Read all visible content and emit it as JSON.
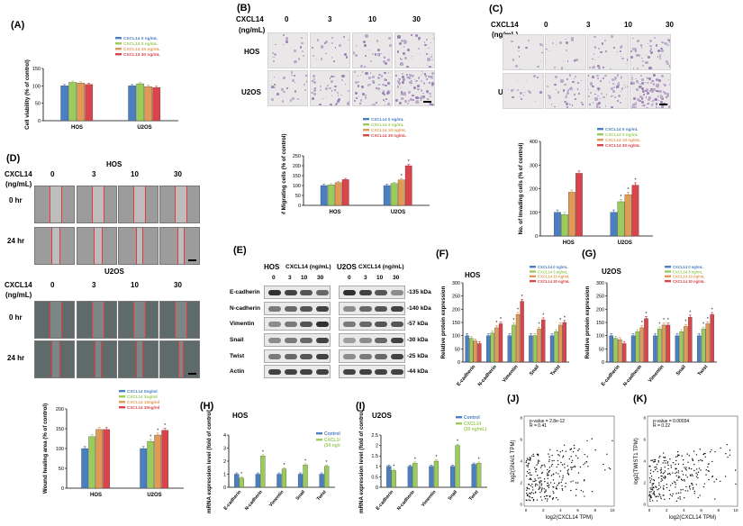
{
  "panels": {
    "A": "(A)",
    "B": "(B)",
    "C": "(C)",
    "D": "(D)",
    "E": "(E)",
    "F": "(F)",
    "G": "(G)",
    "H": "(H)",
    "I": "(I)",
    "J": "(J)",
    "K": "(K)"
  },
  "colors": {
    "c0": "#4a7fc1",
    "c3": "#9bcb5a",
    "c10": "#e09a56",
    "c30": "#d9454a",
    "control": "#4a7fc1",
    "cxcl": "#9bcb5a"
  },
  "legend4": [
    "CXCL14 0 ng/mL",
    "CXCL14 3 ng/mL",
    "CXCL14 10 ng/mL",
    "CXCL14 30 ng/mL"
  ],
  "legend4d": [
    "CXCL14 0ng/ml",
    "CXCL14 3ng/ml",
    "CXCL14 10ng/ml",
    "CXCL14 30ng/ml"
  ],
  "cxcl_header": "CXCL14",
  "cxcl_unit": "(ng/mL)",
  "doses": [
    "0",
    "3",
    "10",
    "30"
  ],
  "cells": {
    "hos": "HOS",
    "u2os": "U2OS"
  },
  "hours": [
    "0 hr",
    "24 hr"
  ],
  "blot": {
    "hos_header": "HOS",
    "u2os_header": "U2OS",
    "dose_header": "CXCL14 (ng/mL)",
    "rows": [
      {
        "name": "E-cadherin",
        "kda": "-135 kDa"
      },
      {
        "name": "N-cadherin",
        "kda": "-140 kDa"
      },
      {
        "name": "Vimentin",
        "kda": "-57 kDa"
      },
      {
        "name": "Snail",
        "kda": "-30 kDa"
      },
      {
        "name": "Twist",
        "kda": "-25 kDa"
      },
      {
        "name": "Actin",
        "kda": "-44 kDa"
      }
    ]
  },
  "hm_legend": [
    "Control",
    "CXCL14",
    "(30 ng/mL)"
  ],
  "corr": {
    "J": {
      "p": "p-value = 2.8e-12",
      "r": "R = 0.41",
      "ylabel": "log2(SNAI1 TPM)",
      "xlabel": "log2(CXCL14 TPM)"
    },
    "K": {
      "p": "p-value = 0.00034",
      "r": "R = 0.22",
      "ylabel": "log2(TWIST1 TPM)",
      "xlabel": "log2(CXCL14 TPM)"
    }
  },
  "chart_data": [
    {
      "id": "A",
      "type": "bar",
      "ylabel": "Cell viability (% of control)",
      "categories": [
        "HOS",
        "U2OS"
      ],
      "ylim": [
        0,
        150
      ],
      "yticks": [
        0,
        50,
        100,
        150
      ],
      "series": [
        {
          "name": "CXCL14 0 ng/mL",
          "values": [
            100,
            100
          ]
        },
        {
          "name": "CXCL14 3 ng/mL",
          "values": [
            110,
            106
          ]
        },
        {
          "name": "CXCL14 10 ng/mL",
          "values": [
            108,
            98
          ]
        },
        {
          "name": "CXCL14 30 ng/mL",
          "values": [
            104,
            95
          ]
        }
      ]
    },
    {
      "id": "B",
      "type": "bar",
      "ylabel": "No. of Migrating cells (% of control)",
      "categories": [
        "HOS",
        "U2OS"
      ],
      "ylim": [
        0,
        250
      ],
      "yticks": [
        0,
        50,
        100,
        150,
        200,
        250
      ],
      "series": [
        {
          "name": "CXCL14 0 ng/mL",
          "values": [
            100,
            100
          ]
        },
        {
          "name": "CXCL14 3 ng/mL",
          "values": [
            103,
            110
          ]
        },
        {
          "name": "CXCL14 10 ng/mL",
          "values": [
            115,
            128
          ]
        },
        {
          "name": "CXCL14 30 ng/mL",
          "values": [
            130,
            200
          ]
        }
      ]
    },
    {
      "id": "C",
      "type": "bar",
      "ylabel": "No. of Invading cells (% of control)",
      "categories": [
        "HOS",
        "U2OS"
      ],
      "ylim": [
        0,
        400
      ],
      "yticks": [
        0,
        100,
        200,
        300,
        400
      ],
      "series": [
        {
          "name": "CXCL14 0 ng/mL",
          "values": [
            100,
            100
          ]
        },
        {
          "name": "CXCL14 3 ng/mL",
          "values": [
            90,
            145
          ]
        },
        {
          "name": "CXCL14 10 ng/mL",
          "values": [
            185,
            175
          ]
        },
        {
          "name": "CXCL14 30 ng/mL",
          "values": [
            265,
            215
          ]
        }
      ]
    },
    {
      "id": "D",
      "type": "bar",
      "ylabel": "Wound healing area (% of control)",
      "categories": [
        "HOS",
        "U2OS"
      ],
      "ylim": [
        0,
        200
      ],
      "yticks": [
        0,
        50,
        100,
        150,
        200
      ],
      "series": [
        {
          "name": "CXCL14 0ng/ml",
          "values": [
            100,
            100
          ]
        },
        {
          "name": "CXCL14 3ng/ml",
          "values": [
            130,
            118
          ]
        },
        {
          "name": "CXCL14 10ng/ml",
          "values": [
            148,
            134
          ]
        },
        {
          "name": "CXCL14 30ng/ml",
          "values": [
            148,
            146
          ]
        }
      ]
    },
    {
      "id": "F",
      "type": "bar",
      "title": "HOS",
      "ylabel": "Relative protein expression",
      "categories": [
        "E-cadherin",
        "N-cadherin",
        "Vimentin",
        "Snail",
        "Twist"
      ],
      "ylim": [
        0,
        300
      ],
      "yticks": [
        0,
        50,
        100,
        150,
        200,
        250,
        300
      ],
      "series": [
        {
          "name": "CXCL14 0 ng/mL",
          "values": [
            100,
            100,
            100,
            100,
            100
          ]
        },
        {
          "name": "CXCL14 3 ng/mL",
          "values": [
            90,
            110,
            140,
            100,
            115
          ]
        },
        {
          "name": "CXCL14 10 ng/mL",
          "values": [
            80,
            130,
            180,
            125,
            140
          ]
        },
        {
          "name": "CXCL14 30 ng/mL",
          "values": [
            70,
            145,
            230,
            160,
            150
          ]
        }
      ]
    },
    {
      "id": "G",
      "type": "bar",
      "title": "U2OS",
      "ylabel": "Relative protein expression",
      "categories": [
        "E-cadherin",
        "N-cadherin",
        "Vimentin",
        "Snail",
        "Twist"
      ],
      "ylim": [
        0,
        300
      ],
      "yticks": [
        0,
        50,
        100,
        150,
        200,
        250,
        300
      ],
      "series": [
        {
          "name": "CXCL14 0 ng/mL",
          "values": [
            100,
            100,
            100,
            100,
            100
          ]
        },
        {
          "name": "CXCL14 3 ng/mL",
          "values": [
            90,
            115,
            125,
            115,
            125
          ]
        },
        {
          "name": "CXCL14 10 ng/mL",
          "values": [
            85,
            130,
            140,
            135,
            145
          ]
        },
        {
          "name": "CXCL14 30 ng/mL",
          "values": [
            70,
            165,
            140,
            170,
            180
          ]
        }
      ]
    },
    {
      "id": "H",
      "type": "bar",
      "title": "HOS",
      "ylabel": "mRNA expression level (fold of control)",
      "categories": [
        "E-cadherin",
        "N-cadherin",
        "Vimentin",
        "Snail",
        "Twist"
      ],
      "ylim": [
        0,
        4
      ],
      "yticks": [
        0,
        1,
        2,
        3,
        4
      ],
      "series": [
        {
          "name": "Control",
          "values": [
            1,
            1,
            1,
            1,
            1
          ]
        },
        {
          "name": "CXCL14 (30 ng/mL)",
          "values": [
            0.7,
            2.4,
            1.4,
            1.7,
            1.6
          ]
        }
      ]
    },
    {
      "id": "I",
      "type": "bar",
      "title": "U2OS",
      "ylabel": "mRNA expression level (fold of control)",
      "categories": [
        "E-cadherin",
        "N-cadherin",
        "Vimentin",
        "Snail",
        "Twist"
      ],
      "ylim": [
        0,
        2.5
      ],
      "yticks": [
        0,
        0.5,
        1.0,
        1.5,
        2.0,
        2.5
      ],
      "series": [
        {
          "name": "Control",
          "values": [
            1,
            1,
            1,
            1,
            1.1
          ]
        },
        {
          "name": "CXCL14 (30 ng/mL)",
          "values": [
            0.8,
            1.15,
            1.25,
            2.0,
            1.15
          ]
        }
      ]
    },
    {
      "id": "J",
      "type": "scatter",
      "xlabel": "log2(CXCL14 TPM)",
      "ylabel": "log2(SNAI1 TPM)",
      "xlim": [
        0,
        10
      ],
      "ylim": [
        0,
        8
      ]
    },
    {
      "id": "K",
      "type": "scatter",
      "xlabel": "log2(CXCL14 TPM)",
      "ylabel": "log2(TWIST1 TPM)",
      "xlim": [
        0,
        10
      ],
      "ylim": [
        0,
        8
      ]
    }
  ]
}
